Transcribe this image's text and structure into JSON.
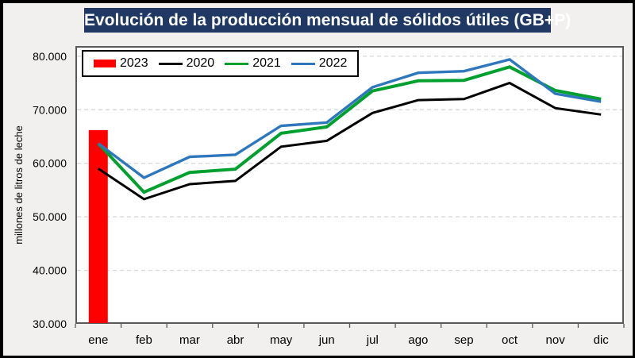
{
  "header": {
    "title": "Evolución de la producción mensual de sólidos útiles (GB+P)"
  },
  "y_axis": {
    "title": "millones de litros de leche",
    "min": 30000,
    "max": 81900,
    "ticks": [
      {
        "label": "80.000",
        "value": 80000
      },
      {
        "label": "70.000",
        "value": 70000
      },
      {
        "label": "60.000",
        "value": 60000
      },
      {
        "label": "50.000",
        "value": 50000
      },
      {
        "label": "40.000",
        "value": 40000
      },
      {
        "label": "30.000",
        "value": 30000
      }
    ]
  },
  "chart_data": {
    "type": "combo-bar-line",
    "title": "Evolución de la producción mensual de sólidos útiles (GB+P)",
    "xlabel": "",
    "ylabel": "millones de litros de leche",
    "ylim": [
      30000,
      81900
    ],
    "grid": "horizontal-dashed",
    "legend_position": "top-left",
    "categories": [
      "ene",
      "feb",
      "mar",
      "abr",
      "may",
      "jun",
      "jul",
      "ago",
      "sep",
      "oct",
      "nov",
      "dic"
    ],
    "series": [
      {
        "name": "2023",
        "kind": "bar",
        "color": "#ff0000",
        "values": [
          66200,
          null,
          null,
          null,
          null,
          null,
          null,
          null,
          null,
          null,
          null,
          null
        ]
      },
      {
        "name": "2020",
        "kind": "line",
        "color": "#000000",
        "values": [
          59000,
          53300,
          56100,
          56700,
          63100,
          64200,
          69400,
          71800,
          72000,
          75000,
          70300,
          69100
        ]
      },
      {
        "name": "2021",
        "kind": "line",
        "color": "#00a02e",
        "values": [
          63700,
          54600,
          58300,
          58900,
          65600,
          66800,
          73500,
          75400,
          75500,
          78000,
          73600,
          72000
        ]
      },
      {
        "name": "2022",
        "kind": "line",
        "color": "#2e77bc",
        "values": [
          63700,
          57300,
          61200,
          61600,
          67000,
          67600,
          74200,
          76900,
          77200,
          79400,
          73000,
          71500
        ]
      }
    ]
  },
  "colors": {
    "title_bg": "#1f3864",
    "title_text": "#ffffff",
    "background": "#f1f0ee",
    "plot_background": "#ffffff",
    "plot_border": "#595959",
    "gridline": "#d9d9d9",
    "outer_border": "#000000"
  }
}
